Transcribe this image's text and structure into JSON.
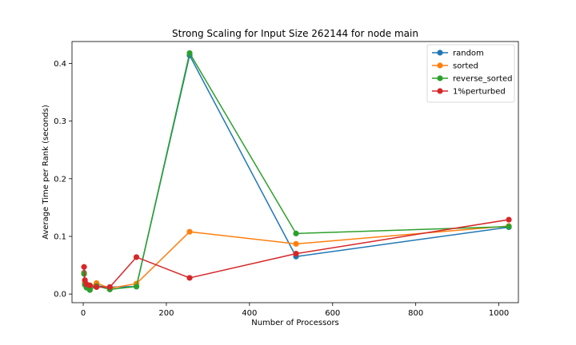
{
  "chart_data": {
    "type": "line",
    "title": "Strong Scaling for Input Size 262144 for node main",
    "xlabel": "Number of Processors",
    "ylabel": "Average Time per Rank (seconds)",
    "xlim": [
      -27,
      1047
    ],
    "ylim": [
      -0.015,
      0.438
    ],
    "xticks": [
      0,
      200,
      400,
      600,
      800,
      1000
    ],
    "yticks": [
      0.0,
      0.1,
      0.2,
      0.3,
      0.4
    ],
    "grid": false,
    "legend_position": "top-right",
    "x": [
      2,
      4,
      8,
      16,
      32,
      64,
      128,
      256,
      512,
      1024
    ],
    "series": [
      {
        "name": "random",
        "color": "#1f77b4",
        "values": [
          0.037,
          0.018,
          0.012,
          0.011,
          0.014,
          0.012,
          0.013,
          0.414,
          0.065,
          0.116
        ]
      },
      {
        "name": "sorted",
        "color": "#ff7f0e",
        "values": [
          0.036,
          0.02,
          0.014,
          0.013,
          0.019,
          0.01,
          0.018,
          0.108,
          0.087,
          0.118
        ]
      },
      {
        "name": "reverse_sorted",
        "color": "#2ca02c",
        "values": [
          0.035,
          0.016,
          0.011,
          0.007,
          0.014,
          0.008,
          0.013,
          0.418,
          0.105,
          0.117
        ]
      },
      {
        "name": "1%perturbed",
        "color": "#d62728",
        "values": [
          0.047,
          0.024,
          0.017,
          0.015,
          0.012,
          0.012,
          0.064,
          0.028,
          0.07,
          0.129
        ]
      }
    ]
  }
}
